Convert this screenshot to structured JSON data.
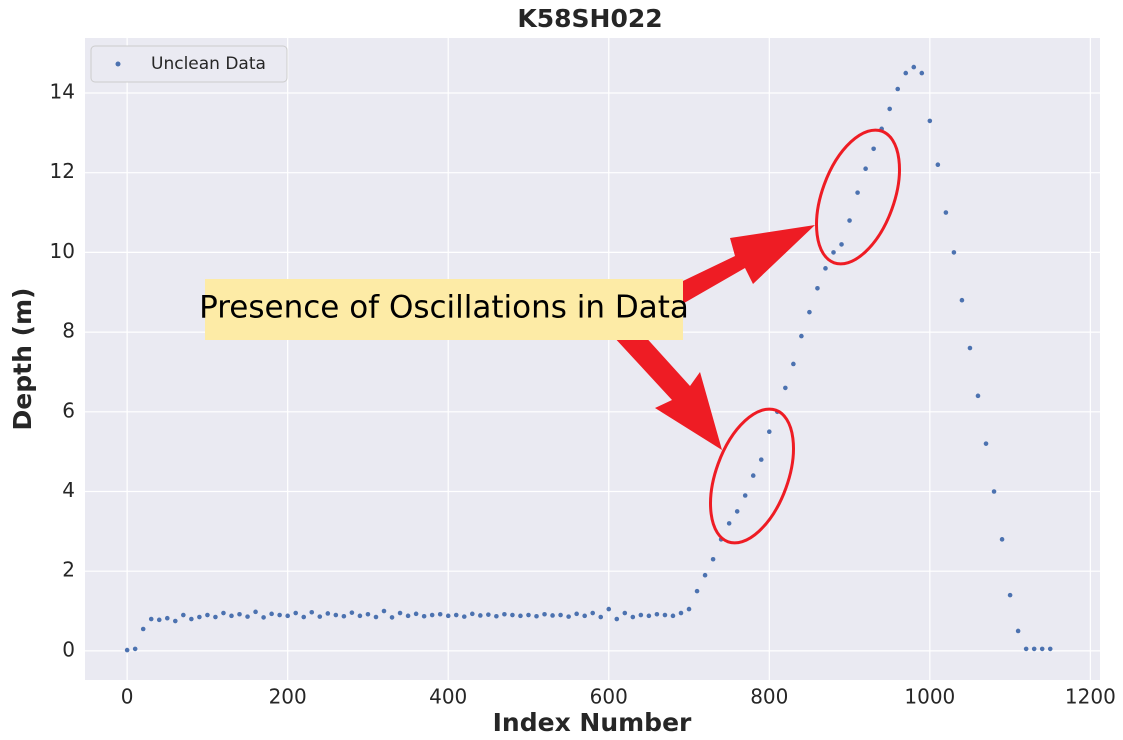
{
  "chart_data": {
    "type": "scatter",
    "title": "K58SH022",
    "xlabel": "Index Number",
    "ylabel": "Depth (m)",
    "annotations": [
      "Presence of Oscillations in Data"
    ],
    "xlim": [
      -52.5,
      1212
    ],
    "ylim": [
      -0.73,
      15.38
    ],
    "xticks": [
      0,
      200,
      400,
      600,
      800,
      1000,
      1200
    ],
    "yticks": [
      0,
      2,
      4,
      6,
      8,
      10,
      12,
      14
    ],
    "grid": true,
    "legend": "upper left",
    "series": [
      {
        "name": "Unclean Data",
        "color": "#4c72b0",
        "x": [
          0,
          10,
          20,
          30,
          40,
          50,
          60,
          70,
          80,
          90,
          100,
          110,
          120,
          130,
          140,
          150,
          160,
          170,
          180,
          190,
          200,
          210,
          220,
          230,
          240,
          250,
          260,
          270,
          280,
          290,
          300,
          310,
          320,
          330,
          340,
          350,
          360,
          370,
          380,
          390,
          400,
          410,
          420,
          430,
          440,
          450,
          460,
          470,
          480,
          490,
          500,
          510,
          520,
          530,
          540,
          550,
          560,
          570,
          580,
          590,
          600,
          610,
          620,
          630,
          640,
          650,
          660,
          670,
          680,
          690,
          700,
          710,
          720,
          730,
          740,
          750,
          760,
          770,
          780,
          790,
          800,
          810,
          820,
          830,
          840,
          850,
          860,
          870,
          880,
          890,
          900,
          910,
          920,
          930,
          940,
          950,
          960,
          970,
          980,
          990,
          1000,
          1010,
          1020,
          1030,
          1040,
          1050,
          1060,
          1070,
          1080,
          1090,
          1100,
          1110,
          1120,
          1130,
          1140,
          1150
        ],
        "values": [
          0.02,
          0.05,
          0.55,
          0.8,
          0.78,
          0.82,
          0.75,
          0.9,
          0.8,
          0.85,
          0.9,
          0.85,
          0.95,
          0.88,
          0.92,
          0.86,
          0.98,
          0.84,
          0.93,
          0.9,
          0.88,
          0.95,
          0.85,
          0.97,
          0.86,
          0.94,
          0.9,
          0.87,
          0.96,
          0.88,
          0.92,
          0.85,
          1.0,
          0.84,
          0.95,
          0.88,
          0.93,
          0.87,
          0.9,
          0.92,
          0.88,
          0.9,
          0.86,
          0.93,
          0.89,
          0.91,
          0.87,
          0.92,
          0.9,
          0.88,
          0.9,
          0.87,
          0.92,
          0.89,
          0.9,
          0.86,
          0.93,
          0.88,
          0.95,
          0.85,
          1.05,
          0.8,
          0.95,
          0.85,
          0.9,
          0.88,
          0.92,
          0.9,
          0.88,
          0.95,
          1.05,
          1.5,
          1.9,
          2.3,
          2.8,
          3.2,
          3.5,
          3.9,
          4.4,
          4.8,
          5.5,
          6.0,
          6.6,
          7.2,
          7.9,
          8.5,
          9.1,
          9.6,
          10.0,
          10.2,
          10.8,
          11.5,
          12.1,
          12.6,
          13.1,
          13.6,
          14.1,
          14.5,
          14.65,
          14.5,
          13.3,
          12.2,
          11.0,
          10.0,
          8.8,
          7.6,
          6.4,
          5.2,
          4.0,
          2.8,
          1.4,
          0.5,
          0.05,
          0.05,
          0.05,
          0.05
        ]
      }
    ]
  }
}
